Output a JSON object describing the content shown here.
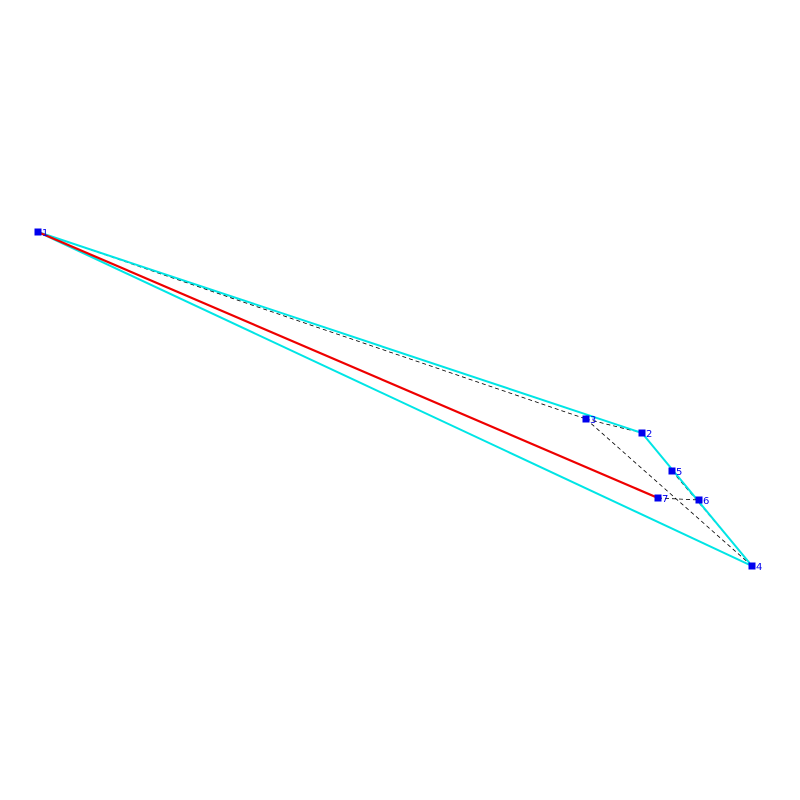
{
  "diagram": {
    "colors": {
      "hull": "#00e5e5",
      "path": "#ee0000",
      "dashed": "#000000",
      "point": "#0000ee",
      "label": "#0000ee"
    },
    "points": [
      {
        "id": "1",
        "label": "1"
      },
      {
        "id": "2",
        "label": "2"
      },
      {
        "id": "3",
        "label": "3"
      },
      {
        "id": "4",
        "label": "4"
      },
      {
        "id": "5",
        "label": "5"
      },
      {
        "id": "6",
        "label": "6"
      },
      {
        "id": "7",
        "label": "7"
      }
    ]
  }
}
